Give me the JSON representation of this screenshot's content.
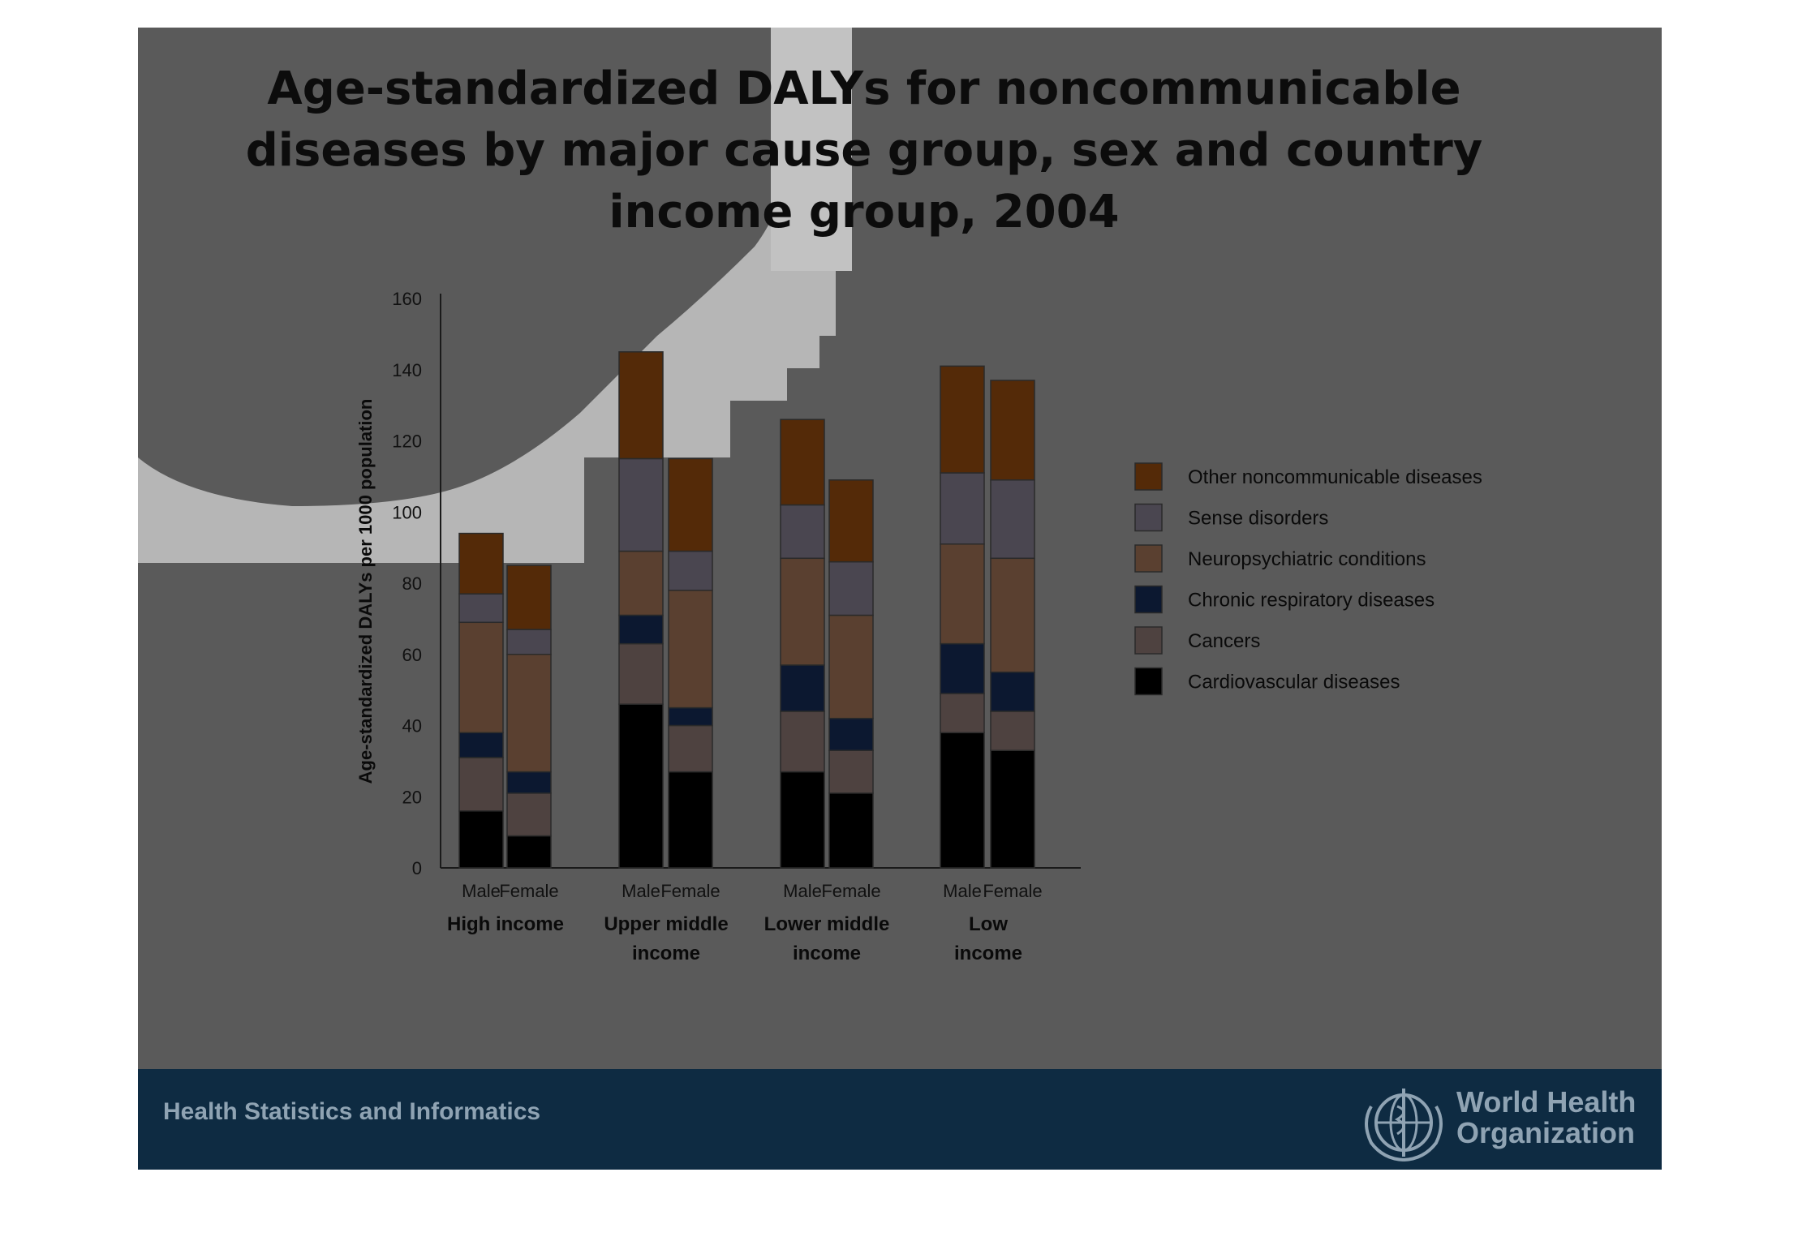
{
  "title_lines": [
    "Age-standardized DALYs for noncommunicable",
    "diseases by major cause group,  sex and country",
    "income group, 2004"
  ],
  "footer": {
    "left_text": "Health Statistics and Informatics",
    "org_line1": "World Health",
    "org_line2": "Organization",
    "logo_icon": "who-emblem-icon"
  },
  "colors": {
    "slide_bg": "#5a5a5a",
    "footer_bg": "#0e2b42",
    "highlight_shape": "#bcbcbc"
  },
  "chart_data": {
    "type": "bar",
    "stacked": true,
    "title": "",
    "ylabel": "Age-standardized DALYs per 1000 population",
    "xlabel": "",
    "ylim": [
      0,
      160
    ],
    "yticks": [
      0,
      20,
      40,
      60,
      80,
      100,
      120,
      140,
      160
    ],
    "grid": false,
    "legend_position": "right",
    "groups": [
      {
        "label_lines": [
          "High income"
        ],
        "categories": [
          "Male",
          "Female"
        ]
      },
      {
        "label_lines": [
          "Upper middle",
          "income"
        ],
        "categories": [
          "Male",
          "Female"
        ]
      },
      {
        "label_lines": [
          "Lower middle",
          "income"
        ],
        "categories": [
          "Male",
          "Female"
        ]
      },
      {
        "label_lines": [
          "Low",
          "income"
        ],
        "categories": [
          "Male",
          "Female"
        ]
      }
    ],
    "series": [
      {
        "name": "Cardiovascular diseases",
        "color": "#000000",
        "values": [
          16,
          9,
          46,
          27,
          27,
          21,
          38,
          33
        ]
      },
      {
        "name": "Cancers",
        "color": "#4e4240",
        "values": [
          15,
          12,
          17,
          13,
          17,
          12,
          11,
          11
        ]
      },
      {
        "name": "Chronic respiratory diseases",
        "color": "#0c1830",
        "values": [
          7,
          6,
          8,
          5,
          13,
          9,
          14,
          11
        ]
      },
      {
        "name": "Neuropsychiatric conditions",
        "color": "#5a4030",
        "values": [
          31,
          33,
          18,
          33,
          30,
          29,
          28,
          32
        ]
      },
      {
        "name": "Sense disorders",
        "color": "#4a4650",
        "values": [
          8,
          7,
          26,
          11,
          15,
          15,
          20,
          22
        ]
      },
      {
        "name": "Other noncommunicable diseases",
        "color": "#542a08",
        "values": [
          17,
          18,
          30,
          26,
          24,
          23,
          30,
          28
        ]
      }
    ],
    "legend_order": [
      "Other noncommunicable diseases",
      "Sense disorders",
      "Neuropsychiatric conditions",
      "Chronic respiratory diseases",
      "Cancers",
      "Cardiovascular diseases"
    ]
  }
}
